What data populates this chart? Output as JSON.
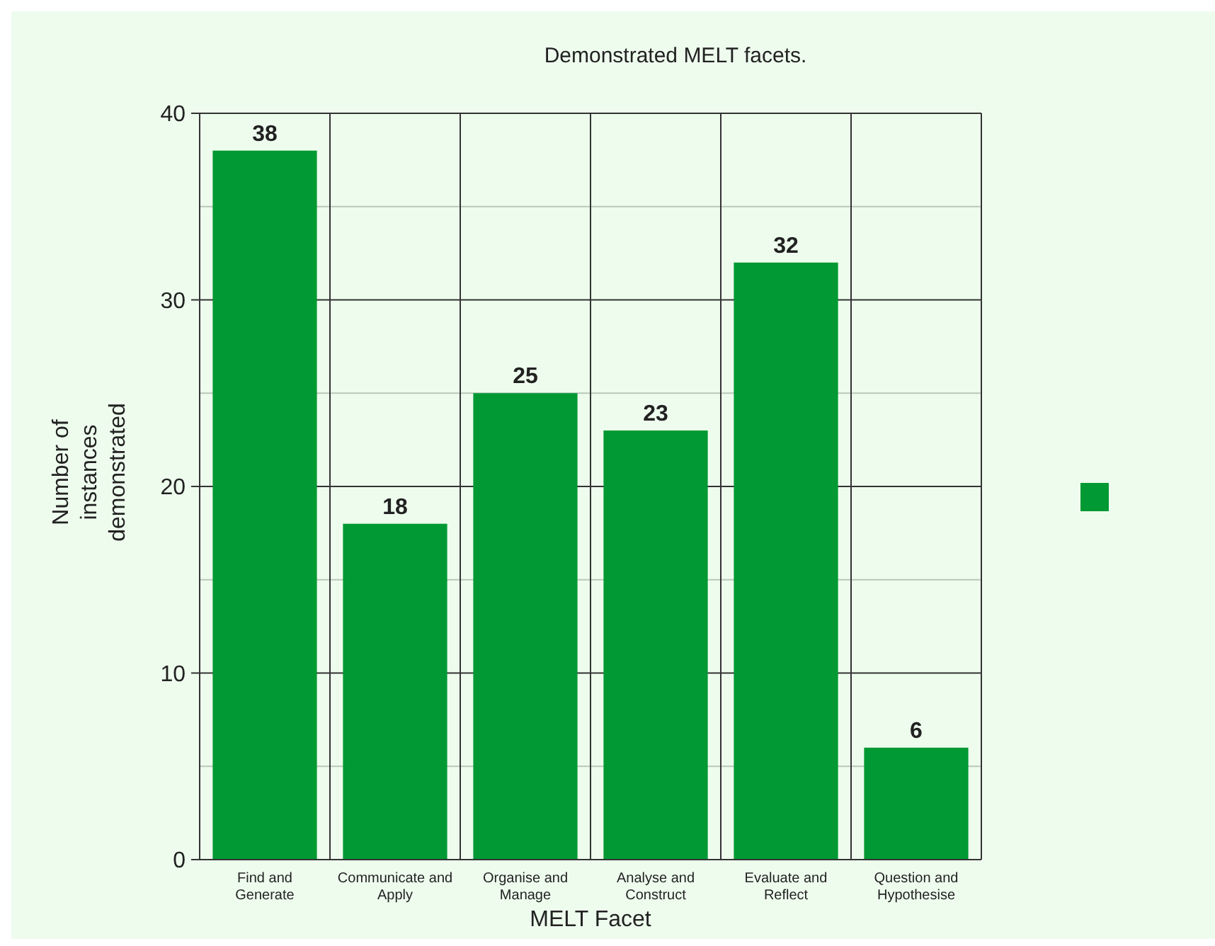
{
  "chart_data": {
    "type": "bar",
    "title": "Demonstrated MELT facets.",
    "xlabel": "MELT Facet",
    "ylabel": "Number of instances demonstrated",
    "categories": [
      "Find and Generate",
      "Communicate and Apply",
      "Organise and Manage",
      "Analyse and Construct",
      "Evaluate and Reflect",
      "Question and Hypothesise"
    ],
    "values": [
      38,
      18,
      25,
      23,
      32,
      6
    ],
    "color": "#009933",
    "ylim": [
      0,
      40
    ],
    "yticks": [
      0,
      {
        "value": 5,
        "label": null
      },
      10,
      {
        "value": 15,
        "label": null
      },
      20,
      {
        "value": 25,
        "label": null
      },
      30,
      {
        "value": 35,
        "label": null
      },
      40
    ],
    "grid": true,
    "data_labels": true
  }
}
